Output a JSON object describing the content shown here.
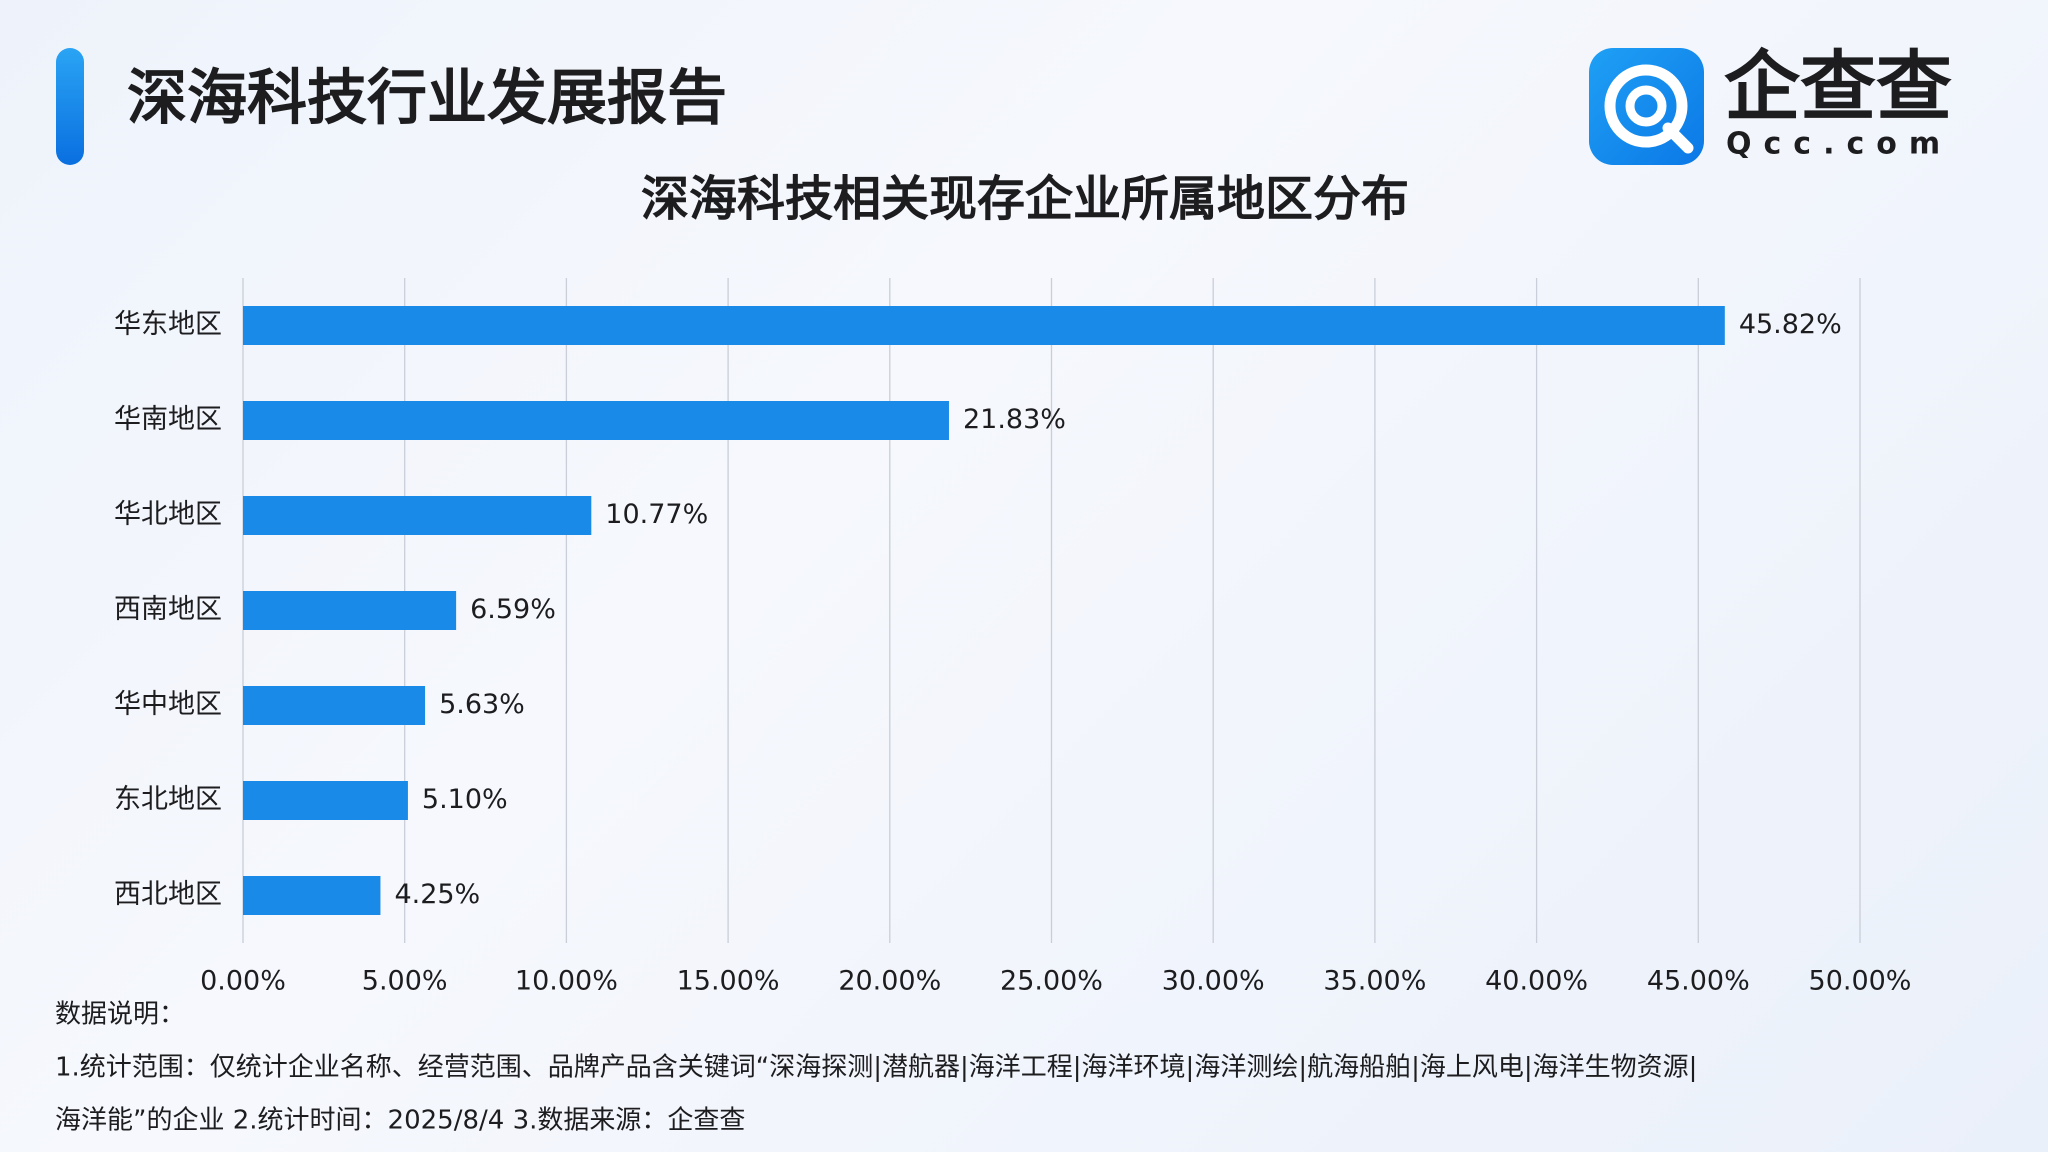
{
  "header": {
    "title": "深海科技行业发展报告",
    "logo_name": "企查查",
    "logo_domain": "Qcc.com"
  },
  "chart_data": {
    "type": "hbar",
    "title": "深海科技相关现存企业所属地区分布",
    "categories": [
      "华东地区",
      "华南地区",
      "华北地区",
      "西南地区",
      "华中地区",
      "东北地区",
      "西北地区"
    ],
    "values": [
      45.82,
      21.83,
      10.77,
      6.59,
      5.63,
      5.1,
      4.25
    ],
    "value_labels": [
      "45.82%",
      "21.83%",
      "10.77%",
      "6.59%",
      "5.63%",
      "5.10%",
      "4.25%"
    ],
    "color": "#1a8ae8",
    "xlim": [
      0,
      50
    ],
    "xticks": [
      {
        "value": 0,
        "label": "0.00%"
      },
      {
        "value": 5,
        "label": "5.00%"
      },
      {
        "value": 10,
        "label": "10.00%"
      },
      {
        "value": 15,
        "label": "15.00%"
      },
      {
        "value": 20,
        "label": "20.00%"
      },
      {
        "value": 25,
        "label": "25.00%"
      },
      {
        "value": 30,
        "label": "30.00%"
      },
      {
        "value": 35,
        "label": "35.00%"
      },
      {
        "value": 40,
        "label": "40.00%"
      },
      {
        "value": 45,
        "label": "45.00%"
      },
      {
        "value": 50,
        "label": "50.00%"
      }
    ],
    "grid": true
  },
  "notes": {
    "heading": "数据说明：",
    "lines": [
      "1.统计范围：仅统计企业名称、经营范围、品牌产品含关键词“深海探测|潜航器|海洋工程|海洋环境|海洋测绘|航海船舶|海上风电|海洋生物资源|",
      "海洋能”的企业 2.统计时间：2025/8/4 3.数据来源：企查查"
    ]
  }
}
